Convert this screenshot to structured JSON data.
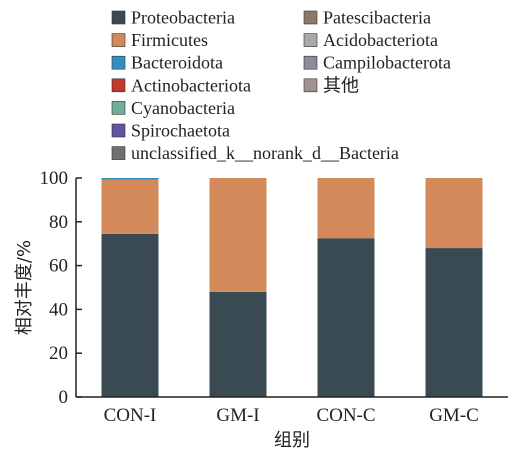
{
  "chart_data": {
    "type": "bar",
    "stacked": true,
    "xlabel": "组别",
    "ylabel": "相对丰度/%",
    "ylim": [
      0,
      100
    ],
    "yticks": [
      0,
      20,
      40,
      60,
      80,
      100
    ],
    "grid": false,
    "legend_position": "top",
    "categories": [
      "CON-I",
      "GM-I",
      "CON-C",
      "GM-C"
    ],
    "series": [
      {
        "name": "Proteobacteria",
        "color": "#3a4a52",
        "values": [
          74.5,
          48.0,
          72.5,
          68.0
        ]
      },
      {
        "name": "Firmicutes",
        "color": "#d4895a",
        "values": [
          24.8,
          52.0,
          27.5,
          32.0
        ]
      },
      {
        "name": "Bacteroidota",
        "color": "#2f8fbf",
        "values": [
          0.7,
          0.0,
          0.0,
          0.0
        ]
      },
      {
        "name": "Actinobacteriota",
        "color": "#c0392b",
        "values": [
          0,
          0,
          0,
          0
        ]
      },
      {
        "name": "Cyanobacteria",
        "color": "#6fae9a",
        "values": [
          0,
          0,
          0,
          0
        ]
      },
      {
        "name": "Spirochaetota",
        "color": "#5f55a0",
        "values": [
          0,
          0,
          0,
          0
        ]
      },
      {
        "name": "unclassified_k__norank_d__Bacteria",
        "color": "#707070",
        "values": [
          0,
          0,
          0,
          0
        ]
      },
      {
        "name": "Patescibacteria",
        "color": "#8c7a66",
        "values": [
          0,
          0,
          0,
          0
        ]
      },
      {
        "name": "Acidobacteriota",
        "color": "#a9a9a9",
        "values": [
          0,
          0,
          0,
          0
        ]
      },
      {
        "name": "Campilobacterota",
        "color": "#8e8a96",
        "values": [
          0,
          0,
          0,
          0
        ]
      },
      {
        "name": "其他",
        "color": "#a09390",
        "values": [
          0,
          0,
          0,
          0
        ]
      }
    ]
  }
}
